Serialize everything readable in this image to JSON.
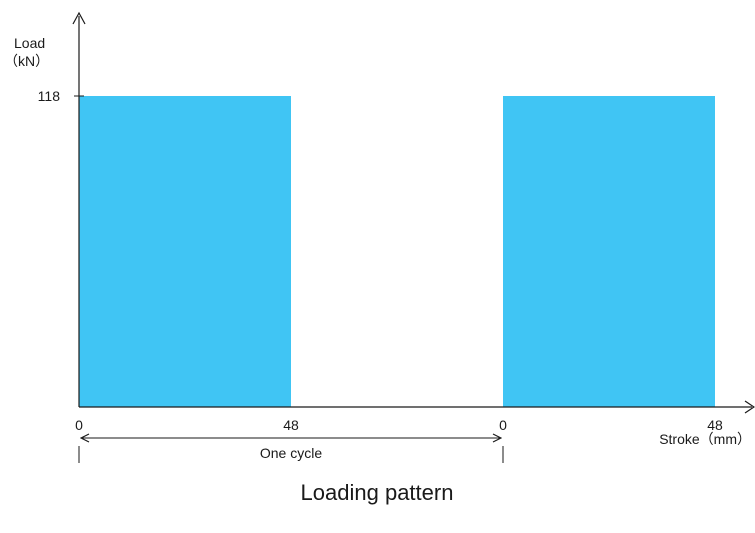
{
  "chart_data": {
    "type": "bar",
    "title": "Loading pattern",
    "ylabel_line1": "Load",
    "ylabel_line2": "（kN）",
    "xlabel": "Stroke（mm）",
    "y_ticks": [
      118
    ],
    "x_tick_labels": [
      "0",
      "48",
      "0",
      "48"
    ],
    "cycle_label": "One cycle",
    "series": [
      {
        "segments": [
          {
            "stroke_start": 0,
            "stroke_end": 48,
            "load": 118
          },
          {
            "stroke_start": 0,
            "stroke_end": 48,
            "load": 118
          }
        ]
      }
    ],
    "ylim": [
      0,
      118
    ],
    "grid": false,
    "bar_color": "#40c5f4"
  }
}
